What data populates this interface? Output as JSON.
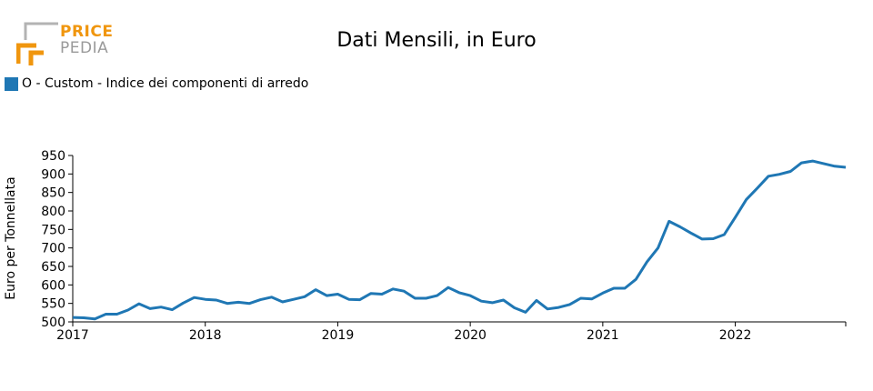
{
  "logo": {
    "line1": "PRICE",
    "line2": "PEDIA"
  },
  "chart_data": {
    "type": "line",
    "title": "Dati Mensili, in Euro",
    "xlabel": "",
    "ylabel": "Euro per Tonnellata",
    "ylim": [
      500,
      950
    ],
    "xlim": [
      "2017-01",
      "2022-11"
    ],
    "grid": false,
    "legend_position": "top-left",
    "y_ticks": [
      500,
      550,
      600,
      650,
      700,
      750,
      800,
      850,
      900,
      950
    ],
    "x_ticks": [
      "2017",
      "2018",
      "2019",
      "2020",
      "2021",
      "2022"
    ],
    "color": "#1f77b4",
    "series": [
      {
        "name": "O - Custom - Indice dei componenti di arredo",
        "x": [
          "2017-01",
          "2017-02",
          "2017-03",
          "2017-04",
          "2017-05",
          "2017-06",
          "2017-07",
          "2017-08",
          "2017-09",
          "2017-10",
          "2017-11",
          "2017-12",
          "2018-01",
          "2018-02",
          "2018-03",
          "2018-04",
          "2018-05",
          "2018-06",
          "2018-07",
          "2018-08",
          "2018-09",
          "2018-10",
          "2018-11",
          "2018-12",
          "2019-01",
          "2019-02",
          "2019-03",
          "2019-04",
          "2019-05",
          "2019-06",
          "2019-07",
          "2019-08",
          "2019-09",
          "2019-10",
          "2019-11",
          "2019-12",
          "2020-01",
          "2020-02",
          "2020-03",
          "2020-04",
          "2020-05",
          "2020-06",
          "2020-07",
          "2020-08",
          "2020-09",
          "2020-10",
          "2020-11",
          "2020-12",
          "2021-01",
          "2021-02",
          "2021-03",
          "2021-04",
          "2021-05",
          "2021-06",
          "2021-07",
          "2021-08",
          "2021-09",
          "2021-10",
          "2021-11",
          "2021-12",
          "2022-01",
          "2022-02",
          "2022-03",
          "2022-04",
          "2022-05",
          "2022-06",
          "2022-07",
          "2022-08",
          "2022-09",
          "2022-10",
          "2022-11"
        ],
        "values": [
          512,
          511,
          508,
          521,
          521,
          532,
          549,
          536,
          540,
          533,
          551,
          566,
          561,
          559,
          550,
          553,
          550,
          560,
          567,
          554,
          561,
          568,
          587,
          571,
          575,
          561,
          560,
          577,
          575,
          589,
          583,
          564,
          564,
          571,
          593,
          579,
          571,
          556,
          552,
          559,
          538,
          526,
          558,
          535,
          539,
          547,
          564,
          562,
          578,
          591,
          591,
          615,
          662,
          700,
          772,
          757,
          740,
          724,
          725,
          736,
          783,
          831,
          862,
          894,
          899,
          907,
          930,
          935,
          928,
          921,
          918
        ]
      }
    ]
  }
}
